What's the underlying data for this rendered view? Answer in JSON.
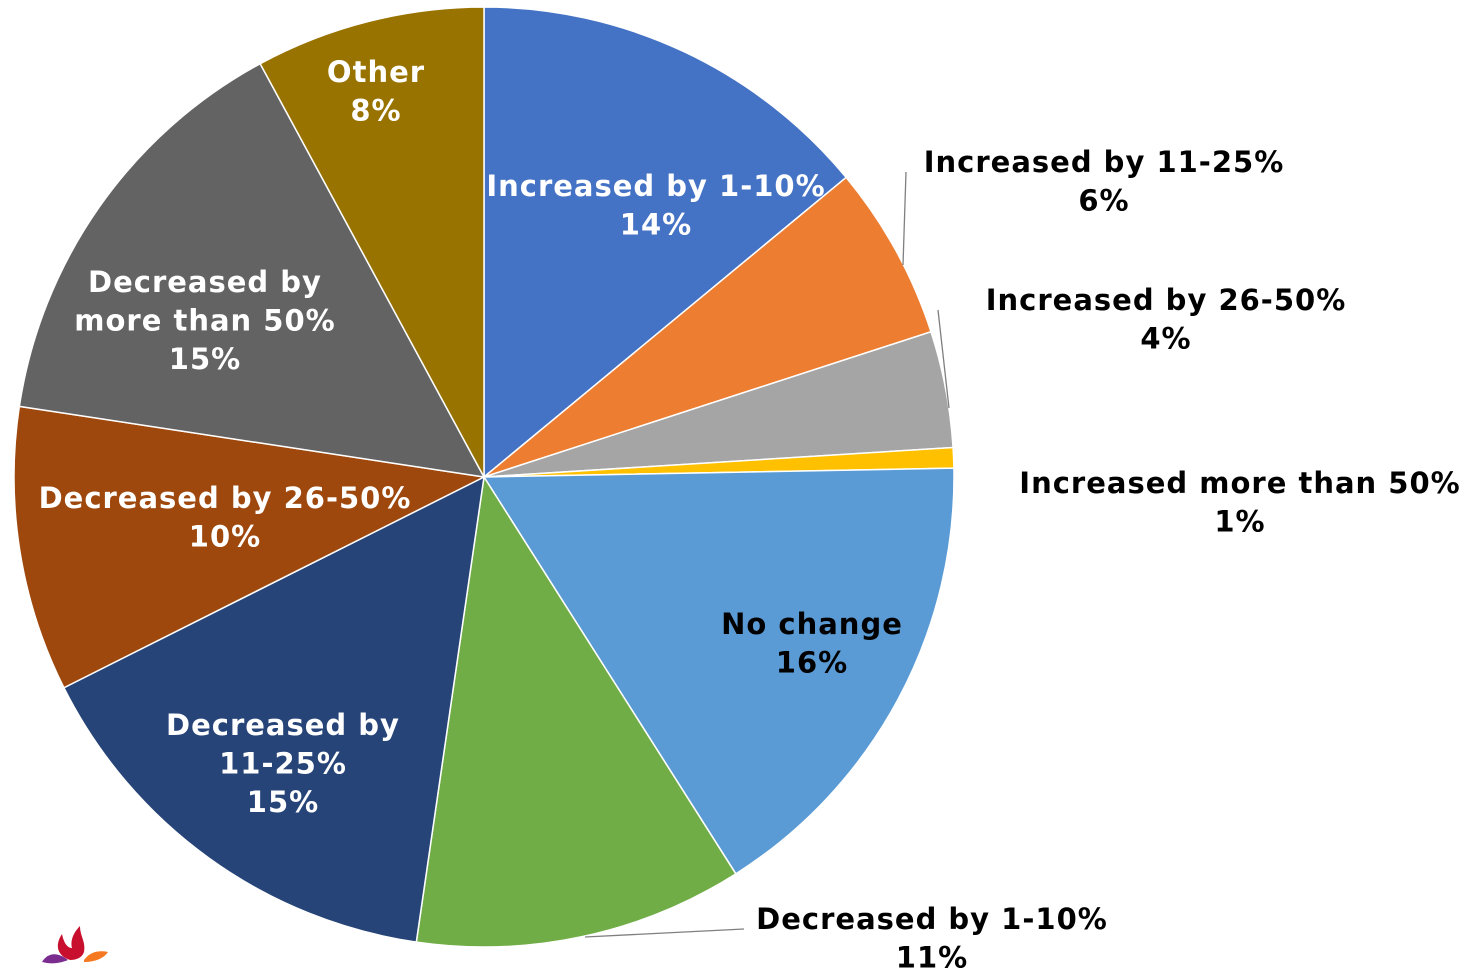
{
  "chart_data": {
    "type": "pie",
    "title": "",
    "slices": [
      {
        "label_lines": [
          "Increased by 1-10%"
        ],
        "value": 14,
        "pct": "14%",
        "color": "#4472C4",
        "label_color": "#ffffff"
      },
      {
        "label_lines": [
          "Increased by 11-25%"
        ],
        "value": 6,
        "pct": "6%",
        "color": "#ED7D31",
        "label_color": "#000000"
      },
      {
        "label_lines": [
          "Increased by 26-50%"
        ],
        "value": 4,
        "pct": "4%",
        "color": "#A5A5A5",
        "label_color": "#000000"
      },
      {
        "label_lines": [
          "Increased more than 50%"
        ],
        "value": 0.7,
        "pct": "1%",
        "color": "#FFC000",
        "label_color": "#000000"
      },
      {
        "label_lines": [
          "No change"
        ],
        "value": 16.3,
        "pct": "16%",
        "color": "#5B9BD5",
        "label_color": "#000000"
      },
      {
        "label_lines": [
          "Decreased by 1-10%"
        ],
        "value": 11.3,
        "pct": "11%",
        "color": "#70AD47",
        "label_color": "#000000"
      },
      {
        "label_lines": [
          "Decreased by",
          "11-25%"
        ],
        "value": 15.3,
        "pct": "15%",
        "color": "#264478",
        "label_color": "#ffffff"
      },
      {
        "label_lines": [
          "Decreased by 26-50%"
        ],
        "value": 9.8,
        "pct": "10%",
        "color": "#9E480E",
        "label_color": "#ffffff"
      },
      {
        "label_lines": [
          "Decreased by",
          "more than 50%"
        ],
        "value": 14.7,
        "pct": "15%",
        "color": "#636363",
        "label_color": "#ffffff"
      },
      {
        "label_lines": [
          "Other"
        ],
        "value": 7.9,
        "pct": "8%",
        "color": "#997300",
        "label_color": "#ffffff"
      }
    ]
  },
  "logo": {
    "name": "flame-logo-icon",
    "colors": [
      "#C8102E",
      "#F47920",
      "#7B2C8F"
    ]
  }
}
